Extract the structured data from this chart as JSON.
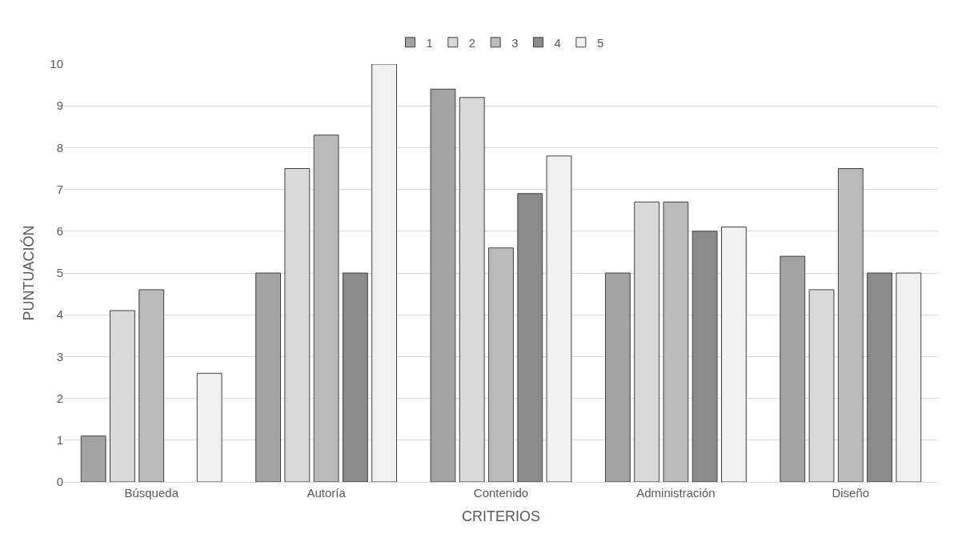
{
  "chart_data": {
    "type": "bar",
    "xlabel": "CRITERIOS",
    "ylabel": "PUNTUACIÓN",
    "categories": [
      "Búsqueda",
      "Autoría",
      "Contenido",
      "Administración",
      "Diseño"
    ],
    "series": [
      {
        "name": "1",
        "color": "#a3a3a3",
        "values": [
          1.1,
          5,
          9.4,
          5,
          5.4
        ]
      },
      {
        "name": "2",
        "color": "#d9d9d9",
        "values": [
          4.1,
          7.5,
          9.2,
          6.7,
          4.6
        ]
      },
      {
        "name": "3",
        "color": "#bababa",
        "values": [
          4.6,
          8.3,
          5.6,
          6.7,
          7.5
        ]
      },
      {
        "name": "4",
        "color": "#8a8a8a",
        "values": [
          null,
          5,
          6.9,
          6,
          5
        ]
      },
      {
        "name": "5",
        "color": "#f0f0f0",
        "values": [
          2.6,
          10,
          7.8,
          6.1,
          5
        ]
      }
    ],
    "ylim": [
      0,
      10
    ],
    "yticks": [
      0,
      1,
      2,
      3,
      4,
      5,
      6,
      7,
      8,
      9,
      10
    ],
    "grid": "y",
    "legend": "top"
  }
}
